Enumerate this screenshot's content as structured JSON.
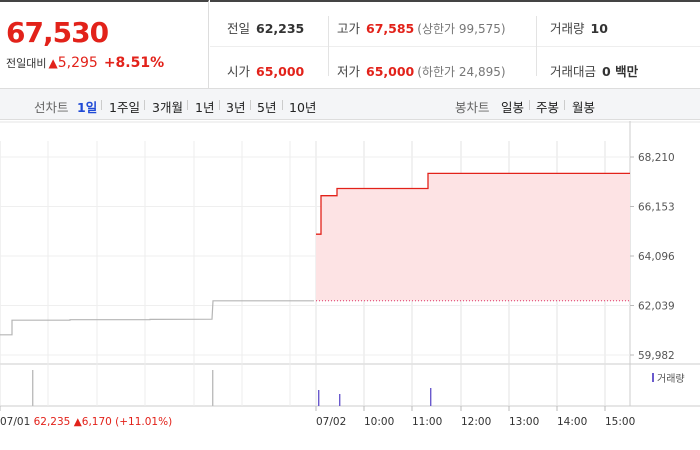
{
  "quote": {
    "price": "67,530",
    "change_label": "전일대비",
    "change_arrow": "▲",
    "change": "5,295",
    "change_pct": "+8.51%"
  },
  "stats": {
    "prev_close": {
      "label": "전일",
      "value": "62,235"
    },
    "high": {
      "label": "고가",
      "value": "67,585",
      "sub": "(상한가 99,575)"
    },
    "volume": {
      "label": "거래량",
      "value": "10"
    },
    "open": {
      "label": "시가",
      "value": "65,000"
    },
    "low": {
      "label": "저가",
      "value": "65,000",
      "sub": "(하한가 24,895)"
    },
    "amount": {
      "label": "거래대금",
      "value": "0 백만"
    }
  },
  "toolbar": {
    "line_label": "선차트",
    "periods": [
      "1일",
      "1주일",
      "3개월",
      "1년",
      "3년",
      "5년",
      "10년"
    ],
    "active_period": "1일",
    "candle_label": "봉차트",
    "candles": [
      "일봉",
      "주봉",
      "월봉"
    ]
  },
  "colors": {
    "up": "#e2221a",
    "active_tab": "#1f4ad6",
    "fill": "#fde3e4",
    "volume_bar": "#6a5acd"
  },
  "chart_data": {
    "type": "line",
    "yticks": [
      "68,210",
      "66,153",
      "64,096",
      "62,039",
      "59,982"
    ],
    "ylim": [
      59982,
      68210
    ],
    "volume_legend": "거래량",
    "xticks": [
      "07/01",
      "07/02",
      "10:00",
      "11:00",
      "12:00",
      "13:00",
      "14:00",
      "15:00"
    ],
    "prev_day_label": "07/01",
    "prev_day_info": {
      "price": "62,235",
      "arrow": "▲",
      "change": "6,170",
      "pct": "(+11.01%)"
    },
    "baseline": 62235,
    "series": [
      {
        "values_prev_day": [
          60820,
          60820,
          61430,
          61430,
          61450,
          61450,
          61460,
          61470,
          61470,
          62235,
          62235,
          62235
        ],
        "values_today": [
          65000,
          65000,
          66600,
          66600,
          66900,
          66900,
          66900,
          66900,
          67530,
          67530,
          67530,
          67530
        ]
      }
    ]
  }
}
